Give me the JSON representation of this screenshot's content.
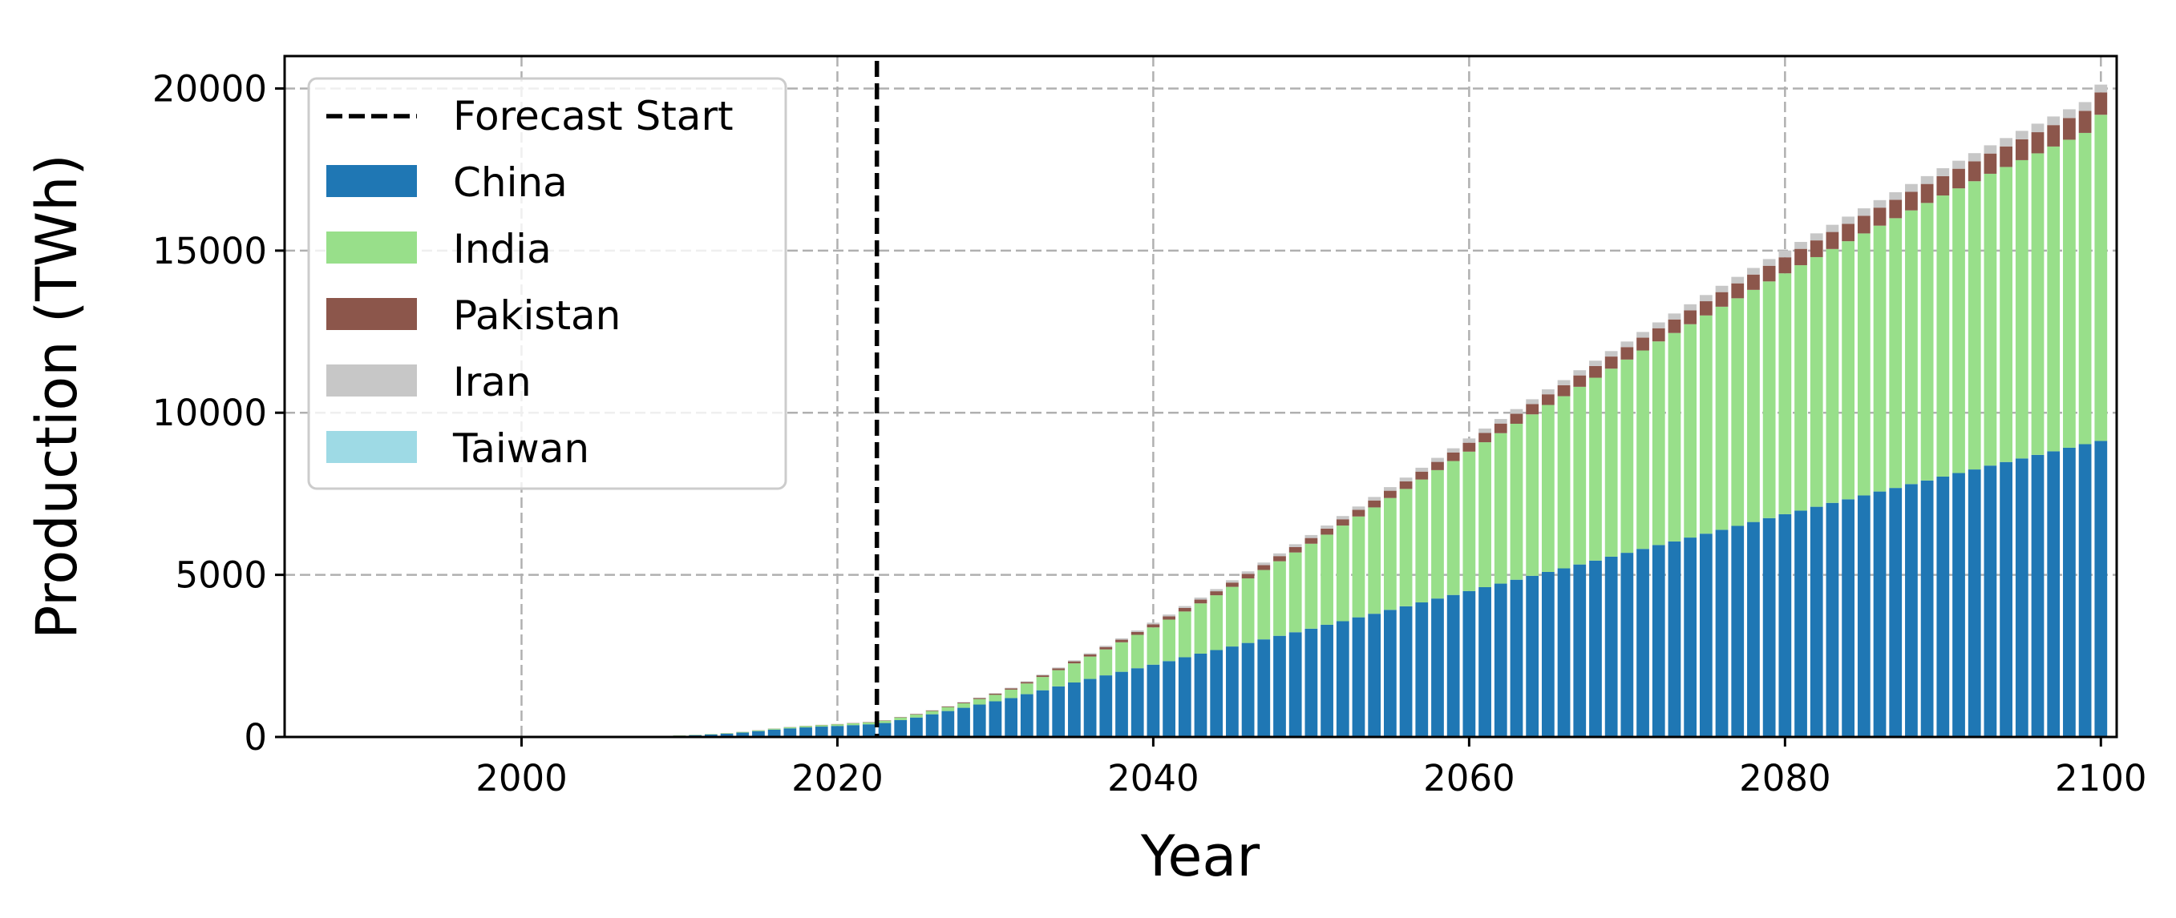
{
  "chart_data": {
    "type": "bar",
    "stacked": true,
    "xlabel": "Year",
    "ylabel": "Production (TWh)",
    "xlim": [
      1985,
      2101
    ],
    "ylim": [
      0,
      21000
    ],
    "xticks": [
      2000,
      2020,
      2040,
      2060,
      2080,
      2100
    ],
    "yticks": [
      0,
      5000,
      10000,
      15000,
      20000
    ],
    "grid": true,
    "legend_position": "top-left",
    "forecast_start": {
      "label": "Forecast Start",
      "x": 2022.5,
      "color": "#000000",
      "style": "dashed"
    },
    "x": [
      1990,
      1991,
      1992,
      1993,
      1994,
      1995,
      1996,
      1997,
      1998,
      1999,
      2000,
      2001,
      2002,
      2003,
      2004,
      2005,
      2006,
      2007,
      2008,
      2009,
      2010,
      2011,
      2012,
      2013,
      2014,
      2015,
      2016,
      2017,
      2018,
      2019,
      2020,
      2021,
      2022,
      2023,
      2024,
      2025,
      2026,
      2027,
      2028,
      2029,
      2030,
      2031,
      2032,
      2033,
      2034,
      2035,
      2036,
      2037,
      2038,
      2039,
      2040,
      2041,
      2042,
      2043,
      2044,
      2045,
      2046,
      2047,
      2048,
      2049,
      2050,
      2051,
      2052,
      2053,
      2054,
      2055,
      2056,
      2057,
      2058,
      2059,
      2060,
      2061,
      2062,
      2063,
      2064,
      2065,
      2066,
      2067,
      2068,
      2069,
      2070,
      2071,
      2072,
      2073,
      2074,
      2075,
      2076,
      2077,
      2078,
      2079,
      2080,
      2081,
      2082,
      2083,
      2084,
      2085,
      2086,
      2087,
      2088,
      2089,
      2090,
      2091,
      2092,
      2093,
      2094,
      2095,
      2096,
      2097,
      2098,
      2099,
      2100
    ],
    "series": [
      {
        "name": "China",
        "color": "#1f77b4",
        "values": [
          0,
          0,
          0,
          0,
          0,
          0,
          0,
          0,
          0,
          0,
          1,
          1,
          2,
          3,
          5,
          7,
          10,
          14,
          20,
          28,
          40,
          55,
          75,
          100,
          135,
          180,
          225,
          265,
          295,
          320,
          340,
          365,
          390,
          430,
          520,
          600,
          700,
          800,
          900,
          1000,
          1100,
          1200,
          1320,
          1440,
          1560,
          1680,
          1790,
          1900,
          2010,
          2120,
          2230,
          2340,
          2460,
          2570,
          2680,
          2790,
          2900,
          3010,
          3120,
          3230,
          3340,
          3460,
          3570,
          3690,
          3800,
          3920,
          4030,
          4150,
          4270,
          4380,
          4500,
          4620,
          4730,
          4850,
          4970,
          5090,
          5200,
          5320,
          5440,
          5560,
          5680,
          5800,
          5920,
          6030,
          6150,
          6270,
          6390,
          6510,
          6630,
          6750,
          6870,
          6980,
          7100,
          7220,
          7330,
          7450,
          7570,
          7680,
          7800,
          7910,
          8030,
          8140,
          8250,
          8370,
          8480,
          8590,
          8700,
          8810,
          8920,
          9030,
          9130
        ]
      },
      {
        "name": "India",
        "color": "#98df8a",
        "values": [
          0,
          0,
          0,
          0,
          0,
          0,
          0,
          0,
          0,
          0,
          1,
          1,
          1,
          2,
          2,
          3,
          3,
          4,
          5,
          6,
          8,
          10,
          12,
          15,
          20,
          25,
          30,
          35,
          40,
          45,
          50,
          55,
          60,
          70,
          80,
          90,
          100,
          120,
          140,
          170,
          200,
          260,
          330,
          410,
          500,
          590,
          690,
          800,
          910,
          1030,
          1150,
          1280,
          1410,
          1550,
          1690,
          1840,
          1990,
          2140,
          2300,
          2460,
          2620,
          2780,
          2950,
          3110,
          3280,
          3450,
          3620,
          3790,
          3960,
          4130,
          4300,
          4470,
          4640,
          4810,
          4980,
          5150,
          5310,
          5480,
          5640,
          5800,
          5960,
          6120,
          6280,
          6430,
          6580,
          6730,
          6880,
          7020,
          7160,
          7300,
          7430,
          7570,
          7700,
          7830,
          7960,
          8080,
          8200,
          8320,
          8440,
          8560,
          8670,
          8780,
          8890,
          9000,
          9100,
          9200,
          9300,
          9400,
          9500,
          9600,
          10060
        ]
      },
      {
        "name": "Pakistan",
        "color": "#8c564b",
        "values": [
          0,
          0,
          0,
          0,
          0,
          0,
          0,
          0,
          0,
          0,
          0,
          0,
          0,
          0,
          0,
          0,
          1,
          1,
          1,
          1,
          2,
          2,
          2,
          3,
          3,
          4,
          4,
          5,
          6,
          7,
          8,
          9,
          10,
          12,
          14,
          16,
          19,
          22,
          26,
          30,
          35,
          40,
          45,
          50,
          56,
          62,
          68,
          74,
          80,
          87,
          94,
          101,
          109,
          116,
          124,
          132,
          141,
          149,
          158,
          167,
          176,
          185,
          194,
          204,
          214,
          224,
          234,
          244,
          254,
          265,
          275,
          286,
          297,
          308,
          318,
          329,
          340,
          351,
          362,
          373,
          384,
          395,
          406,
          417,
          428,
          439,
          450,
          461,
          472,
          483,
          494,
          504,
          515,
          525,
          535,
          546,
          556,
          566,
          576,
          586,
          596,
          605,
          615,
          624,
          634,
          643,
          652,
          661,
          670,
          679,
          690
        ]
      },
      {
        "name": "Iran",
        "color": "#c7c7c7",
        "values": [
          0,
          0,
          0,
          0,
          0,
          0,
          0,
          0,
          0,
          0,
          0,
          0,
          0,
          0,
          0,
          0,
          0,
          0,
          0,
          0,
          1,
          1,
          1,
          1,
          1,
          1,
          2,
          2,
          2,
          2,
          3,
          3,
          3,
          4,
          5,
          6,
          7,
          9,
          11,
          13,
          15,
          18,
          21,
          24,
          27,
          31,
          35,
          39,
          43,
          47,
          51,
          55,
          59,
          63,
          67,
          72,
          76,
          80,
          84,
          88,
          92,
          96,
          100,
          104,
          108,
          112,
          116,
          120,
          124,
          128,
          132,
          136,
          140,
          144,
          148,
          152,
          156,
          160,
          164,
          168,
          172,
          176,
          180,
          184,
          187,
          191,
          195,
          199,
          203,
          206,
          210,
          214,
          217,
          221,
          224,
          228,
          231,
          235,
          238,
          241,
          245,
          248,
          251,
          254,
          257,
          260,
          263,
          266,
          269,
          272,
          240
        ]
      },
      {
        "name": "Taiwan",
        "color": "#9edae5",
        "values": [
          0,
          0,
          0,
          0,
          0,
          0,
          0,
          0,
          0,
          0,
          0,
          0,
          0,
          0,
          0,
          0,
          0,
          0,
          0,
          0,
          0,
          0,
          0,
          0,
          0,
          0,
          0,
          0,
          0,
          0,
          0,
          0,
          0,
          0,
          0,
          0,
          0,
          0,
          0,
          0,
          0,
          0,
          0,
          0,
          0,
          0,
          0,
          0,
          0,
          0,
          0,
          0,
          0,
          0,
          0,
          0,
          0,
          0,
          0,
          0,
          0,
          0,
          0,
          0,
          0,
          0,
          0,
          0,
          0,
          0,
          0,
          0,
          0,
          0,
          0,
          0,
          0,
          0,
          0,
          0,
          0,
          0,
          0,
          0,
          0,
          0,
          0,
          0,
          0,
          0,
          0,
          0,
          0,
          0,
          0,
          0,
          0,
          0,
          0,
          0,
          0,
          0,
          0,
          0,
          0,
          0,
          0,
          0,
          0,
          0,
          0
        ]
      }
    ]
  }
}
